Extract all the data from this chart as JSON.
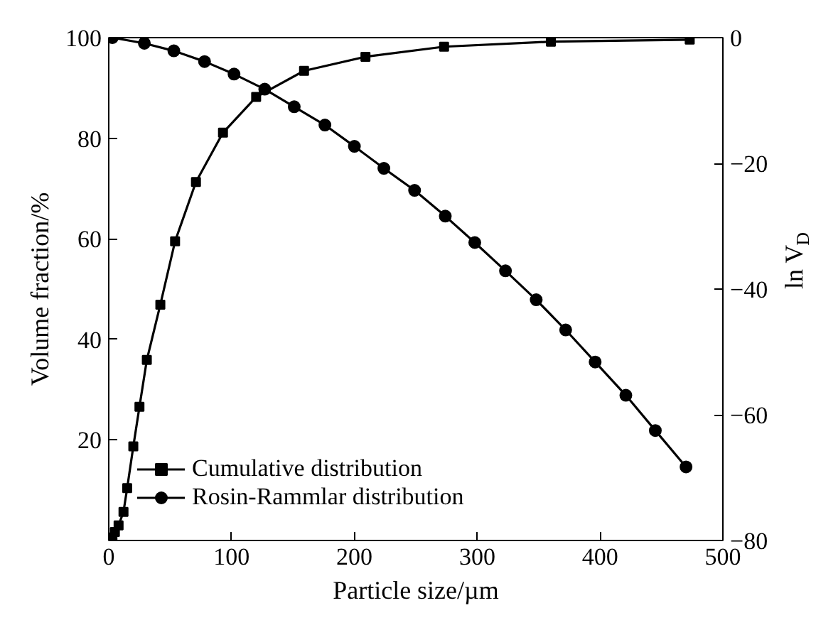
{
  "chart_data": {
    "type": "line",
    "xlabel": "Particle size/µm",
    "ylabel": "Volume fraction/%",
    "y2label": "ln V$_{D}$",
    "xlim": [
      0,
      500
    ],
    "xticks": [
      0,
      100,
      200,
      300,
      400,
      500
    ],
    "ylim": [
      0,
      100
    ],
    "yticks": [
      {
        "value": 0,
        "label": null
      },
      20,
      40,
      60,
      80,
      100
    ],
    "y2lim": [
      -80,
      0
    ],
    "y2ticks": [
      -80,
      -60,
      -40,
      -20,
      0
    ],
    "legend": "bottom left",
    "grid": false,
    "line_style": "solid",
    "series": [
      {
        "name": "Cumulative distribution",
        "color": "#000000",
        "marker": "square",
        "x": [
          3,
          5,
          8,
          12,
          15,
          20,
          25,
          31,
          42,
          54,
          71,
          93,
          120,
          159,
          209,
          273,
          360,
          473
        ],
        "values": [
          0.6,
          1.7,
          3,
          5.7,
          10.4,
          18.7,
          26.6,
          35.9,
          46.9,
          59.5,
          71.3,
          81.1,
          88.2,
          93.4,
          96.2,
          98.2,
          99.2,
          99.6
        ]
      },
      {
        "name": "Rosin-Rammlar distribution",
        "color": "#000000",
        "marker": "circle",
        "axis": "y2",
        "x": [
          3,
          29,
          53,
          78,
          102,
          127,
          151,
          176,
          200,
          224,
          249,
          274,
          298,
          323,
          348,
          372,
          396,
          421,
          445,
          470
        ],
        "values": [
          0,
          -0.9,
          -2.1,
          -3.8,
          -5.8,
          -8.2,
          -11,
          -13.9,
          -17.3,
          -20.8,
          -24.3,
          -28.4,
          -32.6,
          -37.1,
          -41.7,
          -46.5,
          -51.6,
          -56.9,
          -62.5,
          -68.3
        ]
      }
    ]
  }
}
